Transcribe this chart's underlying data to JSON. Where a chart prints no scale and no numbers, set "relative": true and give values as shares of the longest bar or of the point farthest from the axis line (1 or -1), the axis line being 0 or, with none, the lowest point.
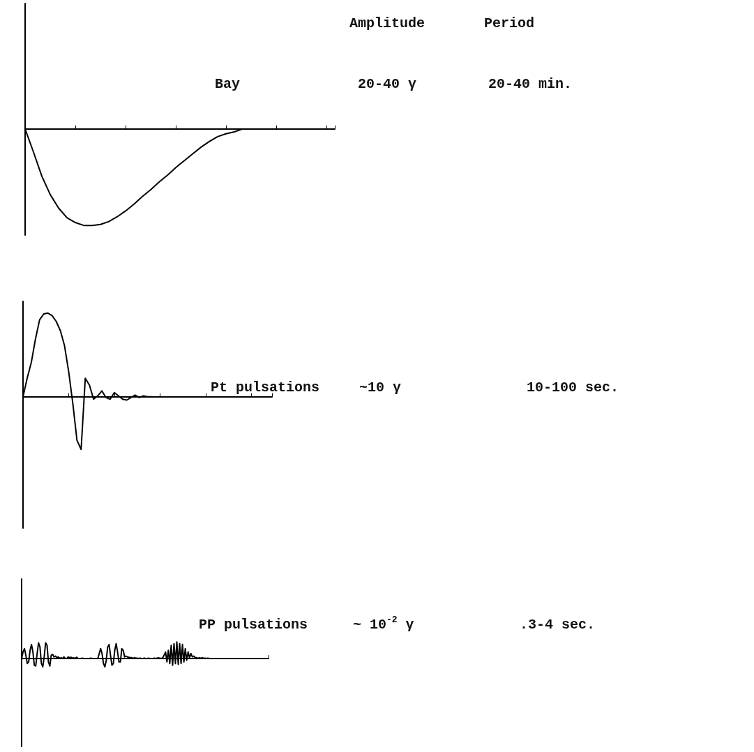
{
  "chart_data": [
    {
      "type": "line",
      "relative": true,
      "marker": "none",
      "line_style": "solid",
      "color": "#000000",
      "annotations": [
        "Amplitude",
        "Period",
        "Bay",
        "20-40 γ",
        "20-40 min."
      ],
      "categories": [
        null,
        null,
        null,
        null,
        null,
        null,
        null,
        null,
        null,
        null,
        null,
        null,
        null,
        null,
        null,
        null,
        null,
        null,
        null,
        null,
        null,
        null,
        null,
        null,
        null,
        null,
        null,
        null,
        null,
        null,
        null,
        null,
        null,
        null,
        null,
        null,
        null,
        null
      ],
      "values": [
        0,
        -0.24,
        -0.49,
        -0.68,
        -0.82,
        -0.92,
        -0.97,
        -1.0,
        -1.0,
        -0.99,
        -0.96,
        -0.91,
        -0.85,
        -0.78,
        -0.7,
        -0.63,
        -0.55,
        -0.48,
        -0.4,
        -0.33,
        -0.26,
        -0.19,
        -0.13,
        -0.08,
        -0.05,
        -0.03,
        0,
        null,
        null,
        null,
        null,
        null,
        null,
        null,
        null,
        null,
        null,
        null
      ]
    },
    {
      "type": "line",
      "relative": true,
      "marker": "none",
      "line_style": "solid",
      "color": "#000000",
      "annotations": [
        "Pt pulsations",
        "~10 γ",
        "10-100 sec."
      ],
      "categories": [
        null,
        null,
        null,
        null,
        null,
        null,
        null,
        null,
        null,
        null,
        null,
        null,
        null,
        null,
        null,
        null,
        null,
        null,
        null,
        null,
        null,
        null,
        null,
        null,
        null,
        null,
        null,
        null,
        null,
        null,
        null,
        null,
        null,
        null,
        null,
        null,
        null,
        null,
        null,
        null,
        null,
        null,
        null,
        null,
        null,
        null,
        null,
        null,
        null,
        null,
        null,
        null,
        null,
        null,
        null,
        null,
        null,
        null,
        null,
        null,
        null
      ],
      "values": [
        0,
        0.22,
        0.41,
        0.69,
        0.92,
        0.99,
        1.0,
        0.97,
        0.9,
        0.79,
        0.61,
        0.3,
        -0.08,
        -0.52,
        -0.63,
        0.22,
        0.14,
        -0.03,
        0.01,
        0.07,
        -0.01,
        -0.03,
        0.05,
        0.01,
        -0.03,
        -0.04,
        -0.01,
        0.02,
        -0.01,
        0.01,
        0,
        0,
        null,
        null,
        null,
        null,
        null,
        null,
        null,
        null,
        null,
        null,
        null,
        null,
        null,
        null,
        null,
        null,
        null,
        null,
        null,
        null,
        null,
        null,
        null,
        null,
        null,
        null,
        null,
        null,
        null
      ]
    },
    {
      "type": "line",
      "relative": true,
      "marker": "none",
      "line_style": "solid",
      "color": "#000000",
      "annotations": [
        "PP pulsations",
        "~ 10$^{-2}$ γ",
        ".3-4 sec."
      ],
      "categories": [
        null,
        null,
        null,
        null,
        null,
        null,
        null,
        null,
        null,
        null,
        null,
        null,
        null,
        null,
        null,
        null,
        null,
        null,
        null,
        null,
        null,
        null,
        null,
        null,
        null,
        null,
        null,
        null,
        null,
        null,
        null,
        null,
        null,
        null,
        null,
        null,
        null,
        null,
        null,
        null,
        null,
        null,
        null,
        null,
        null,
        null,
        null,
        null,
        null,
        null,
        null,
        null,
        null,
        null,
        null,
        null,
        null,
        null,
        null,
        null,
        null,
        null,
        null,
        null,
        null,
        null,
        null,
        null,
        null,
        null,
        null,
        null,
        null,
        null,
        null,
        null,
        null,
        null,
        null,
        null,
        null,
        null,
        null,
        null,
        null,
        null,
        null,
        null,
        null,
        null,
        null,
        null,
        null,
        null,
        null,
        null,
        null,
        null,
        null,
        null,
        null,
        null,
        null,
        null,
        null,
        null,
        null,
        null,
        null,
        null,
        null,
        null,
        null,
        null,
        null,
        null,
        null,
        null,
        null,
        null,
        null,
        null,
        null,
        null,
        null,
        null,
        null,
        null,
        null,
        null,
        null,
        null,
        null,
        null,
        null,
        null,
        null,
        null,
        null,
        null,
        null,
        null,
        null,
        null,
        null,
        null,
        null,
        null,
        null,
        null,
        null,
        null,
        null,
        null,
        null,
        null,
        null,
        null,
        null,
        null,
        null,
        null,
        null,
        null,
        null,
        null,
        null,
        null,
        null,
        null,
        null,
        null,
        null,
        null,
        null,
        null
      ],
      "values": [
        0,
        0.4,
        0.6,
        0.2,
        -0.3,
        -0.2,
        0.5,
        0.85,
        0.4,
        -0.4,
        -0.45,
        0.3,
        0.95,
        0.7,
        -0.3,
        -0.5,
        0.1,
        0.95,
        0.8,
        -0.2,
        -0.45,
        0.2,
        0.25,
        0.1,
        0.15,
        0.05,
        0.1,
        0.02,
        0.05,
        0,
        0.1,
        0,
        0,
        0.1,
        0.05,
        0.08,
        0.02,
        0.05,
        0,
        0.08,
        0,
        0,
        0,
        0.02,
        0,
        0,
        0,
        0,
        0,
        0.02,
        0,
        0,
        0,
        0,
        0,
        0.3,
        0.6,
        0.3,
        -0.3,
        -0.5,
        -0.1,
        0.7,
        0.85,
        0.2,
        -0.4,
        -0.3,
        0.5,
        0.9,
        0.4,
        -0.2,
        -0.2,
        0.6,
        0.5,
        0.1,
        0.15,
        0.1,
        0.08,
        0.05,
        0.05,
        0.02,
        0.05,
        0.02,
        0.02,
        0,
        0.02,
        0,
        0,
        0.02,
        0,
        0,
        0.02,
        0,
        0,
        0,
        0.02,
        0,
        0.02,
        0.05,
        0.02,
        0,
        0.05,
        0.2,
        0.4,
        -0.2,
        0.5,
        -0.3,
        0.8,
        -0.4,
        0.9,
        -0.3,
        1.0,
        -0.35,
        0.9,
        -0.3,
        0.85,
        -0.2,
        0.6,
        -0.1,
        0.4,
        0.05,
        0.3,
        0.1,
        0.15,
        0.05,
        0.05,
        0.02,
        0.05,
        0.02,
        0.05,
        0.02,
        0.02,
        0,
        0.02,
        0,
        0,
        0,
        null,
        null,
        null,
        null,
        null,
        null,
        null,
        null,
        null,
        null,
        null,
        null,
        null,
        null,
        null,
        null,
        null,
        null,
        null,
        null,
        null,
        null,
        null,
        null,
        null,
        null,
        null,
        null,
        null,
        null,
        null,
        null,
        null,
        null,
        null,
        null,
        null,
        null,
        null,
        null
      ]
    }
  ]
}
